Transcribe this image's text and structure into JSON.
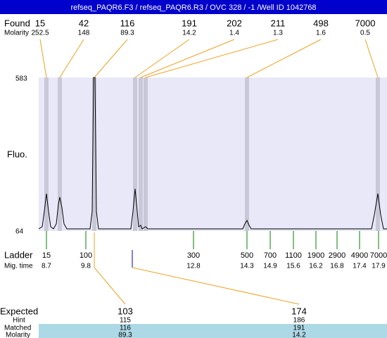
{
  "header": {
    "title": "refseq_PAQR6.F3 / refseq_PAQR6.R3 / OVC 328 / -1 /Well ID 1042768"
  },
  "found": {
    "label": "Found",
    "molarity_label": "Molarity",
    "sizes": [
      "15",
      "42",
      "116",
      "191",
      "202",
      "211",
      "498",
      "7000"
    ],
    "molarities": [
      "252.5",
      "148",
      "89.3",
      "14.2",
      "1.4",
      "1.3",
      "1.6",
      "0.5"
    ]
  },
  "plot": {
    "y_label": "Fluo.",
    "y_max": "583",
    "y_min": "64"
  },
  "ladder": {
    "label": "Ladder",
    "time_label": "Mig. time",
    "sizes": [
      "15",
      "100",
      "300",
      "500",
      "700",
      "1100",
      "1900",
      "2900",
      "4900",
      "7000"
    ],
    "times": [
      "8.7",
      "9.8",
      "12.8",
      "14.3",
      "14.9",
      "15.6",
      "16.2",
      "16.8",
      "17.4",
      "17.9"
    ]
  },
  "expected": {
    "label": "Expected",
    "hint_label": "Hint",
    "matched_label": "Matched",
    "molarity_label": "Molarity",
    "sizes": [
      "103",
      "174"
    ],
    "hints": [
      "115",
      "186"
    ],
    "matched": [
      "116",
      "191"
    ],
    "molarities": [
      "89.3",
      "14.2"
    ]
  }
}
